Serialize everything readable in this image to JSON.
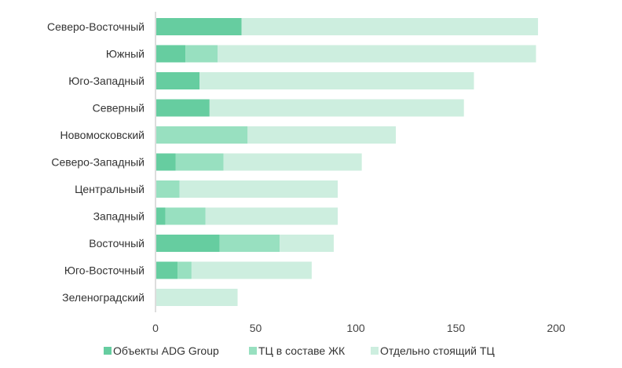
{
  "chart_data": {
    "type": "bar",
    "orientation": "horizontal",
    "stacked": true,
    "categories": [
      "Северо-Восточный",
      "Южный",
      "Юго-Западный",
      "Северный",
      "Новомосковский",
      "Северо-Западный",
      "Центральный",
      "Западный",
      "Восточный",
      "Юго-Восточный",
      "Зеленоградский"
    ],
    "series": [
      {
        "name": "Объекты ADG Group",
        "color": "#66cda0",
        "values": [
          43,
          15,
          22,
          27,
          0,
          10,
          0,
          5,
          32,
          11,
          0
        ]
      },
      {
        "name": "ТЦ в составе ЖК",
        "color": "#98e0c0",
        "values": [
          0,
          16,
          0,
          0,
          46,
          24,
          12,
          20,
          30,
          7,
          0
        ]
      },
      {
        "name": "Отдельно стоящий ТЦ",
        "color": "#cdeedf",
        "values": [
          148,
          159,
          137,
          127,
          74,
          69,
          79,
          66,
          27,
          60,
          41
        ]
      }
    ],
    "xlim": [
      0,
      200
    ],
    "xticks": [
      "0",
      "50",
      "100",
      "150",
      "200"
    ],
    "title": "",
    "xlabel": "",
    "ylabel": "",
    "grid": false,
    "legend_position": "bottom"
  }
}
